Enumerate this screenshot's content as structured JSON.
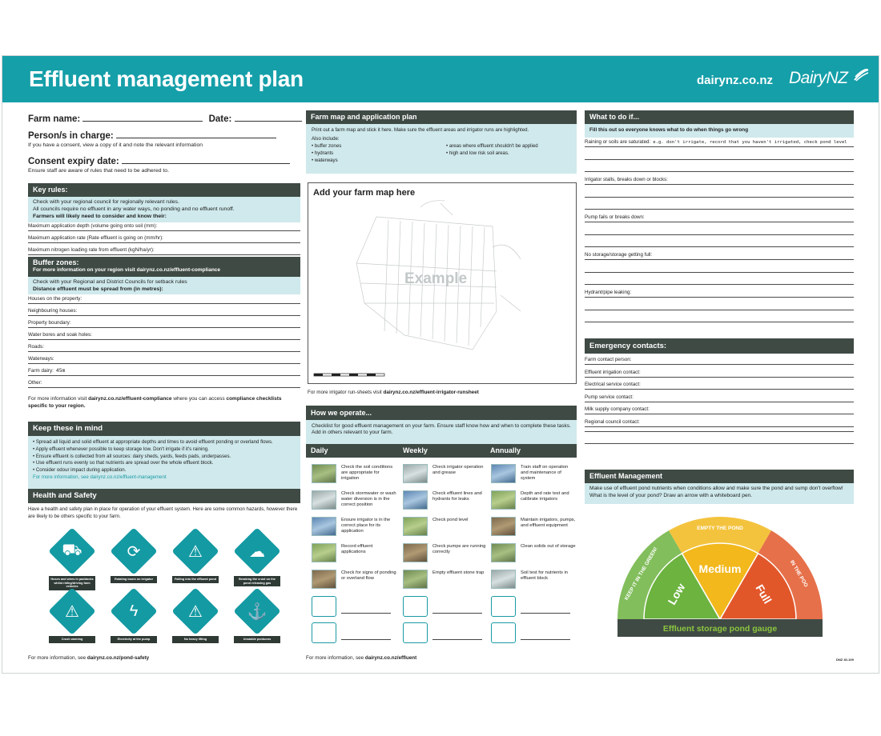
{
  "header": {
    "title": "Effluent management plan",
    "site": "dairynz.co.nz",
    "logo_text": "DairyNZ"
  },
  "left": {
    "farm_name_label": "Farm name:",
    "date_label": "Date:",
    "persons_label": "Person/s in charge:",
    "consent_note": "If you have a consent, view a copy of it and note the relevant information",
    "consent_expiry_label": "Consent expiry date:",
    "rules_note": "Ensure staff are aware of rules that need to be adhered to.",
    "key_rules": {
      "heading": "Key rules:",
      "info_line1": "Check with your regional council for regionally relevant rules.",
      "info_line2": "All councils require no effluent in any water ways, no ponding and no effluent runoff.",
      "info_line3": "Farmers will likely need to consider and know their:",
      "rows": [
        "Maximum application depth (volume going onto soil (mm):",
        "Maximum application rate (Rate effluent is going on (mm/hr):",
        "Maximum nitrogen loading rate from effluent (kgN/ha/yr):"
      ]
    },
    "buffer_zones": {
      "heading": "Buffer zones:",
      "subheading_pre": "For more information on your region visit",
      "subheading_link": "dairynz.co.nz/effluent-compliance",
      "info_line1": "Check with your Regional and District Councils for setback rules",
      "info_line2": "Distance effluent must be spread from (in metres):",
      "rows": [
        {
          "label": "Houses on the property:",
          "value": ""
        },
        {
          "label": "Neighbouring houses:",
          "value": ""
        },
        {
          "label": "Property boundary:",
          "value": ""
        },
        {
          "label": "Water bores and soak holes:",
          "value": ""
        },
        {
          "label": "Roads:",
          "value": ""
        },
        {
          "label": "Waterways:",
          "value": ""
        },
        {
          "label": "Farm dairy:",
          "value": "45m"
        },
        {
          "label": "Other:",
          "value": ""
        }
      ]
    },
    "compliance_note_pre": "For more information visit",
    "compliance_note_link": "dairynz.co.nz/effluent-compliance",
    "compliance_note_mid": "where you can access",
    "compliance_note_bold": "compliance checklists specific to your region.",
    "keep_in_mind": {
      "heading": "Keep these in mind",
      "bullets": [
        "Spread all liquid and solid effluent at appropriate depths and times to avoid effluent ponding or overland flows.",
        "Apply effluent whenever possible to keep storage low. Don't irrigate if it's raining.",
        "Ensure effluent is collected from all sources: dairy sheds, yards, feeds pads, underpasses.",
        "Use effluent runs evenly so that nutrients are spread over the whole effluent block.",
        "Consider odour impact during application."
      ],
      "more_info": "For more information, see dairynz.co.nz/effluent-management"
    },
    "health_safety": {
      "heading": "Health and Safety",
      "intro": "Have a health and safety plan in place for operation of your effluent system. Here are some common hazards, however there are likely to be others specific to your farm.",
      "hazards": [
        "Hoses and wires in paddocks whilst riding/driving farm vehicles",
        "Rotating boom on irrigator",
        "Falling into the effluent pond",
        "Breaking the crust on the pond releasing gas",
        "Crush warning",
        "Electricity at the pump",
        "No heavy lifting",
        "Unstable pontoons"
      ],
      "hazard_icons": [
        "quad-bike-icon",
        "boom-icon",
        "fall-in-pond-icon",
        "gas-icon",
        "crush-icon",
        "electricity-icon",
        "heavy-lifting-icon",
        "pontoon-icon"
      ]
    },
    "footer_pre": "For more information, see",
    "footer_link": "dairynz.co.nz/pond-safety"
  },
  "middle": {
    "farm_map": {
      "heading": "Farm map and application plan",
      "instruction": "Print out a farm map and stick it here. Make sure the effluent areas and irrigator runs are highlighted.",
      "also_include": "Also include:",
      "items_left": [
        "buffer zones",
        "hydrants",
        "waterways"
      ],
      "items_right": [
        "areas where effluent shouldn't be applied",
        "high and low risk soil areas."
      ],
      "map_title": "Add your farm map here",
      "watermark": "Example",
      "runsheet_pre": "For more irrigator run-sheets visit",
      "runsheet_link": "dairynz.co.nz/effluent-irrigator-runsheet"
    },
    "how_we_operate": {
      "heading": "How we operate...",
      "intro": "Checklist for good effluent management on your farm. Ensure staff know how and when to complete these tasks. Add in others relevant to your farm.",
      "columns": [
        "Daily",
        "Weekly",
        "Annually"
      ],
      "daily": [
        "Check the soil conditions are appropriate for irrigation",
        "Check stormwater or wash water diversion is in the correct position",
        "Ensure irrigator is in the correct place for its application",
        "Record effluent applications",
        "Check for signs of ponding or overland flow"
      ],
      "weekly": [
        "Check irrigator operation and grease",
        "Check effluent lines and hydrants for leaks",
        "Check pond level",
        "Check pumps are running correctly",
        "Empty effluent stone trap"
      ],
      "annually": [
        "Train staff on operation and maintenance of system",
        "Depth and rate test and calibrate irrigators",
        "Maintain irrigators, pumps, and effluent equipment",
        "Clean solids out of storage",
        "Soil test for nutrients in effluent block"
      ]
    },
    "footer_pre": "For more information, see",
    "footer_link": "dairynz.co.nz/effluent"
  },
  "right": {
    "what_to_do": {
      "heading": "What to do if...",
      "subheading": "Fill this out so everyone knows what to do when things go wrong",
      "items": [
        {
          "label": "Raining or soils are saturated:",
          "value": "e.g. don't irrigate, record that you haven't irrigated, check pond level"
        },
        {
          "label": "Irrigator stalls, breaks down or blocks:",
          "value": ""
        },
        {
          "label": "Pump fails or breaks down:",
          "value": ""
        },
        {
          "label": "No storage/storage getting full:",
          "value": ""
        },
        {
          "label": "Hydrant/pipe leaking:",
          "value": ""
        }
      ]
    },
    "emergency": {
      "heading": "Emergency contacts:",
      "rows": [
        "Farm contact person:",
        "Effluent irrigation contact:",
        "Electrical service contact:",
        "Pump service contact:",
        "Milk supply company contact:",
        "Regional council contact:"
      ]
    },
    "effluent_mgmt": {
      "heading": "Effluent Management",
      "text": "Make use of effluent pond nutrients when conditions allow and make sure the pond and sump don't overflow! What is the level of your pond? Draw an arrow with a whiteboard pen.",
      "gauge_labels": [
        "Low",
        "Medium",
        "Full"
      ],
      "gauge_arc_labels": [
        "KEEP IT IN THE GREEN!",
        "EMPTY THE POND",
        "IN THE POO"
      ],
      "gauge_colors": [
        "#6cb33f",
        "#f2b81c",
        "#e2572a"
      ],
      "gauge_title": "Effluent storage pond gauge"
    },
    "doc_code": "DNZ 40-109"
  }
}
